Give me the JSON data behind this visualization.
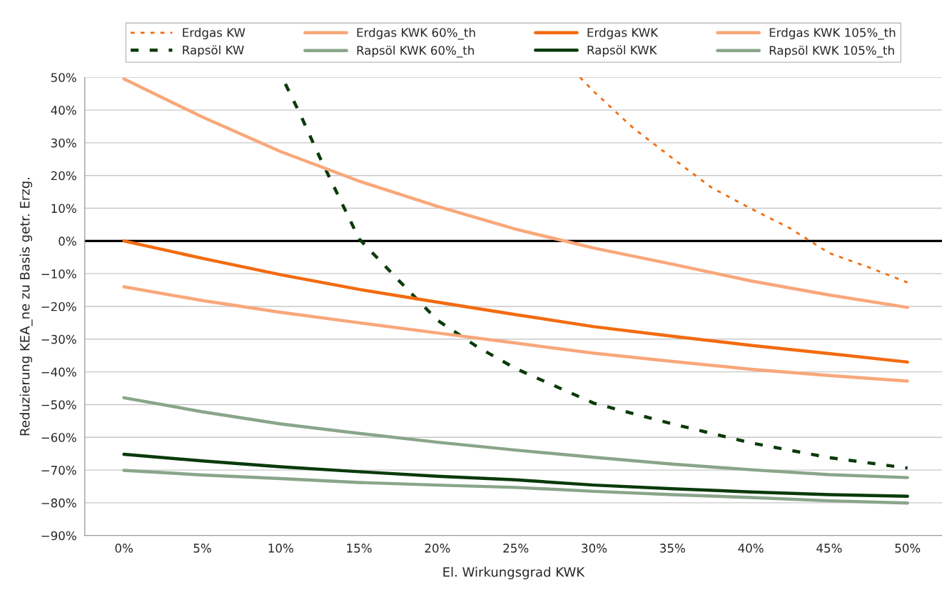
{
  "chart_data": {
    "type": "line",
    "xlabel": "El. Wirkungsgrad KWK",
    "ylabel": "Reduzierung KEA_ne zu Basis getr. Erzg.",
    "x": [
      0,
      5,
      10,
      15,
      20,
      25,
      30,
      35,
      40,
      45,
      50
    ],
    "xlim": [
      -2.5,
      52.2
    ],
    "xticks": [
      {
        "value": 0,
        "label": "0%"
      },
      {
        "value": 5,
        "label": "5%"
      },
      {
        "value": 10,
        "label": "10%"
      },
      {
        "value": 15,
        "label": "15%"
      },
      {
        "value": 20,
        "label": "20%"
      },
      {
        "value": 25,
        "label": "25%"
      },
      {
        "value": 30,
        "label": "30%"
      },
      {
        "value": 35,
        "label": "35%"
      },
      {
        "value": 40,
        "label": "40%"
      },
      {
        "value": 45,
        "label": "45%"
      },
      {
        "value": 50,
        "label": "50%"
      }
    ],
    "ylim": [
      -90,
      50
    ],
    "yticks": [
      {
        "value": -90,
        "label": "−90%"
      },
      {
        "value": -80,
        "label": "−80%"
      },
      {
        "value": -70,
        "label": "−70%"
      },
      {
        "value": -60,
        "label": "−60%"
      },
      {
        "value": -50,
        "label": "−50%"
      },
      {
        "value": -40,
        "label": "−40%"
      },
      {
        "value": -30,
        "label": "−30%"
      },
      {
        "value": -20,
        "label": "−20%"
      },
      {
        "value": -10,
        "label": "−10%"
      },
      {
        "value": 0,
        "label": "0%"
      },
      {
        "value": 10,
        "label": "10%"
      },
      {
        "value": 20,
        "label": "20%"
      },
      {
        "value": 30,
        "label": "30%"
      },
      {
        "value": 40,
        "label": "40%"
      },
      {
        "value": 50,
        "label": "50%"
      }
    ],
    "grid": "y",
    "legend": "top",
    "marker": "none",
    "ref_lines": [
      {
        "axis": "y",
        "value": 0,
        "color": "#000000",
        "line_style": "solid"
      }
    ],
    "series": [
      {
        "name": "Erdgas KW",
        "color": "#f26b0f",
        "line_style": "dotted",
        "x": [
          29.1,
          30,
          32.5,
          35,
          37.5,
          40,
          42.5,
          45,
          47.5,
          50
        ],
        "values": [
          50,
          45.6,
          34.5,
          25.3,
          16.3,
          9.9,
          3.9,
          -3.7,
          -8.0,
          -12.7
        ]
      },
      {
        "name": "Rapsöl KW",
        "color": "#0a3a0a",
        "line_style": "dashed",
        "x": [
          10.3,
          11.25,
          12.5,
          15,
          17.5,
          20,
          22.5,
          25,
          30,
          35,
          40,
          45,
          50
        ],
        "values": [
          48,
          38.7,
          25.5,
          0.7,
          -11.9,
          -24.2,
          -32.2,
          -39,
          -49.6,
          -55.9,
          -61.7,
          -66.2,
          -69.4
        ]
      },
      {
        "name": "Erdgas KWK 60%_th",
        "color": "#f9a77a",
        "line_style": "solid",
        "values": [
          49.5,
          37.9,
          27.3,
          18.3,
          10.6,
          3.6,
          -2.2,
          -7.1,
          -12.2,
          -16.5,
          -20.3
        ]
      },
      {
        "name": "Rapsöl KWK 60%_th",
        "color": "#8aa58a",
        "line_style": "solid",
        "values": [
          -47.9,
          -52.2,
          -55.9,
          -58.8,
          -61.5,
          -63.9,
          -66.1,
          -68.2,
          -69.9,
          -71.4,
          -72.3
        ]
      },
      {
        "name": "Erdgas KWK",
        "color": "#f26b0f",
        "line_style": "solid",
        "values": [
          0,
          -5.3,
          -10.3,
          -14.8,
          -18.7,
          -22.5,
          -26.2,
          -29.1,
          -31.9,
          -34.4,
          -37.0
        ]
      },
      {
        "name": "Rapsöl KWK",
        "color": "#0a3a0a",
        "line_style": "solid",
        "values": [
          -65.2,
          -67.2,
          -69.0,
          -70.5,
          -71.9,
          -73.0,
          -74.6,
          -75.7,
          -76.7,
          -77.5,
          -78.0
        ]
      },
      {
        "name": "Erdgas KWK 105%_th",
        "color": "#f9a77a",
        "line_style": "solid",
        "values": [
          -14.0,
          -18.2,
          -21.8,
          -25.0,
          -28.1,
          -31.2,
          -34.3,
          -36.8,
          -39.2,
          -41.1,
          -42.8
        ]
      },
      {
        "name": "Rapsöl KWK 105%_th",
        "color": "#8aa58a",
        "line_style": "solid",
        "values": [
          -70.1,
          -71.5,
          -72.6,
          -73.8,
          -74.6,
          -75.3,
          -76.5,
          -77.5,
          -78.4,
          -79.4,
          -80.1
        ]
      }
    ]
  }
}
